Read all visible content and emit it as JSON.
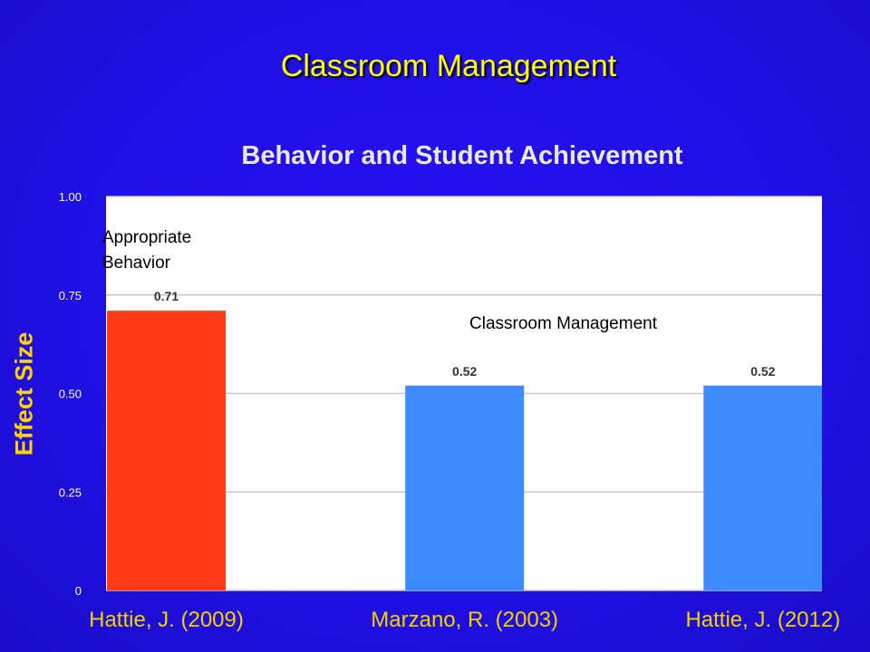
{
  "slide_title": "Classroom Management",
  "colors": {
    "background": "#1f10e6",
    "title": "#ffff00",
    "ylabel": "#ffd200",
    "xlabel": "#f4d000",
    "bar_red": "#ff3a17",
    "bar_blue": "#3d8bff"
  },
  "chart_data": {
    "type": "bar",
    "title": "Behavior and  Student Achievement",
    "ylabel": "Effect Size",
    "xlabel": "",
    "categories": [
      "Hattie, J. (2009)",
      "Marzano, R. (2003)",
      "Hattie, J. (2012)"
    ],
    "series": [
      {
        "values": [
          0.71,
          0.52,
          0.52
        ],
        "data_labels": [
          "0.71",
          "0.52",
          "0.52"
        ]
      }
    ],
    "bar_colors": [
      "#ff3a17",
      "#3d8bff",
      "#3d8bff"
    ],
    "ylim": [
      0,
      1
    ],
    "yticks": [
      0,
      0.25,
      0.5,
      0.75,
      1.0
    ],
    "ytick_labels": [
      "0",
      "0.25",
      "0.50",
      "0.75",
      "1.00"
    ],
    "grid": true,
    "annotations": [
      "Appropriate Behavior",
      "Classroom Management"
    ]
  }
}
